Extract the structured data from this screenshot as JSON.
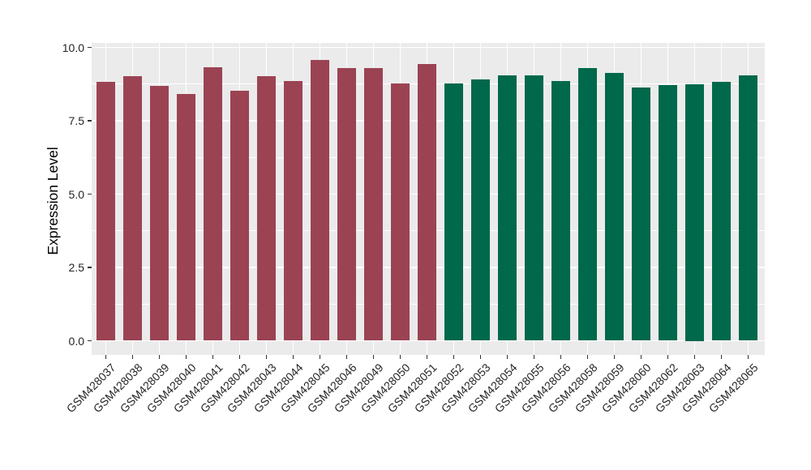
{
  "chart_data": {
    "type": "bar",
    "title": "",
    "xlabel": "",
    "ylabel": "Expression Level",
    "ylim": [
      0,
      10
    ],
    "y_ticks": [
      0.0,
      2.5,
      5.0,
      7.5,
      10.0
    ],
    "y_tick_labels": [
      "0.0",
      "2.5",
      "5.0",
      "7.5",
      "10.0"
    ],
    "y_minor_ticks": [
      1.25,
      3.75,
      6.25,
      8.75
    ],
    "grid": true,
    "legend_position": "none",
    "panel_background": "#EBEBEB",
    "gridline_color": "#FFFFFF",
    "group_colors": {
      "group1": "#9B4353",
      "group2": "#00684B"
    },
    "categories": [
      "GSM428037",
      "GSM428038",
      "GSM428039",
      "GSM428040",
      "GSM428041",
      "GSM428042",
      "GSM428043",
      "GSM428044",
      "GSM428045",
      "GSM428046",
      "GSM428049",
      "GSM428050",
      "GSM428051",
      "GSM428052",
      "GSM428053",
      "GSM428054",
      "GSM428055",
      "GSM428056",
      "GSM428058",
      "GSM428059",
      "GSM428060",
      "GSM428062",
      "GSM428063",
      "GSM428064",
      "GSM428065"
    ],
    "values": [
      8.83,
      9.03,
      8.69,
      8.41,
      9.32,
      8.53,
      9.03,
      8.85,
      9.57,
      9.29,
      9.29,
      8.78,
      9.42,
      8.76,
      8.9,
      9.06,
      9.06,
      8.85,
      9.29,
      9.14,
      8.64,
      8.72,
      8.75,
      8.82,
      9.05
    ],
    "bar_groups": [
      "group1",
      "group1",
      "group1",
      "group1",
      "group1",
      "group1",
      "group1",
      "group1",
      "group1",
      "group1",
      "group1",
      "group1",
      "group1",
      "group2",
      "group2",
      "group2",
      "group2",
      "group2",
      "group2",
      "group2",
      "group2",
      "group2",
      "group2",
      "group2",
      "group2"
    ]
  }
}
